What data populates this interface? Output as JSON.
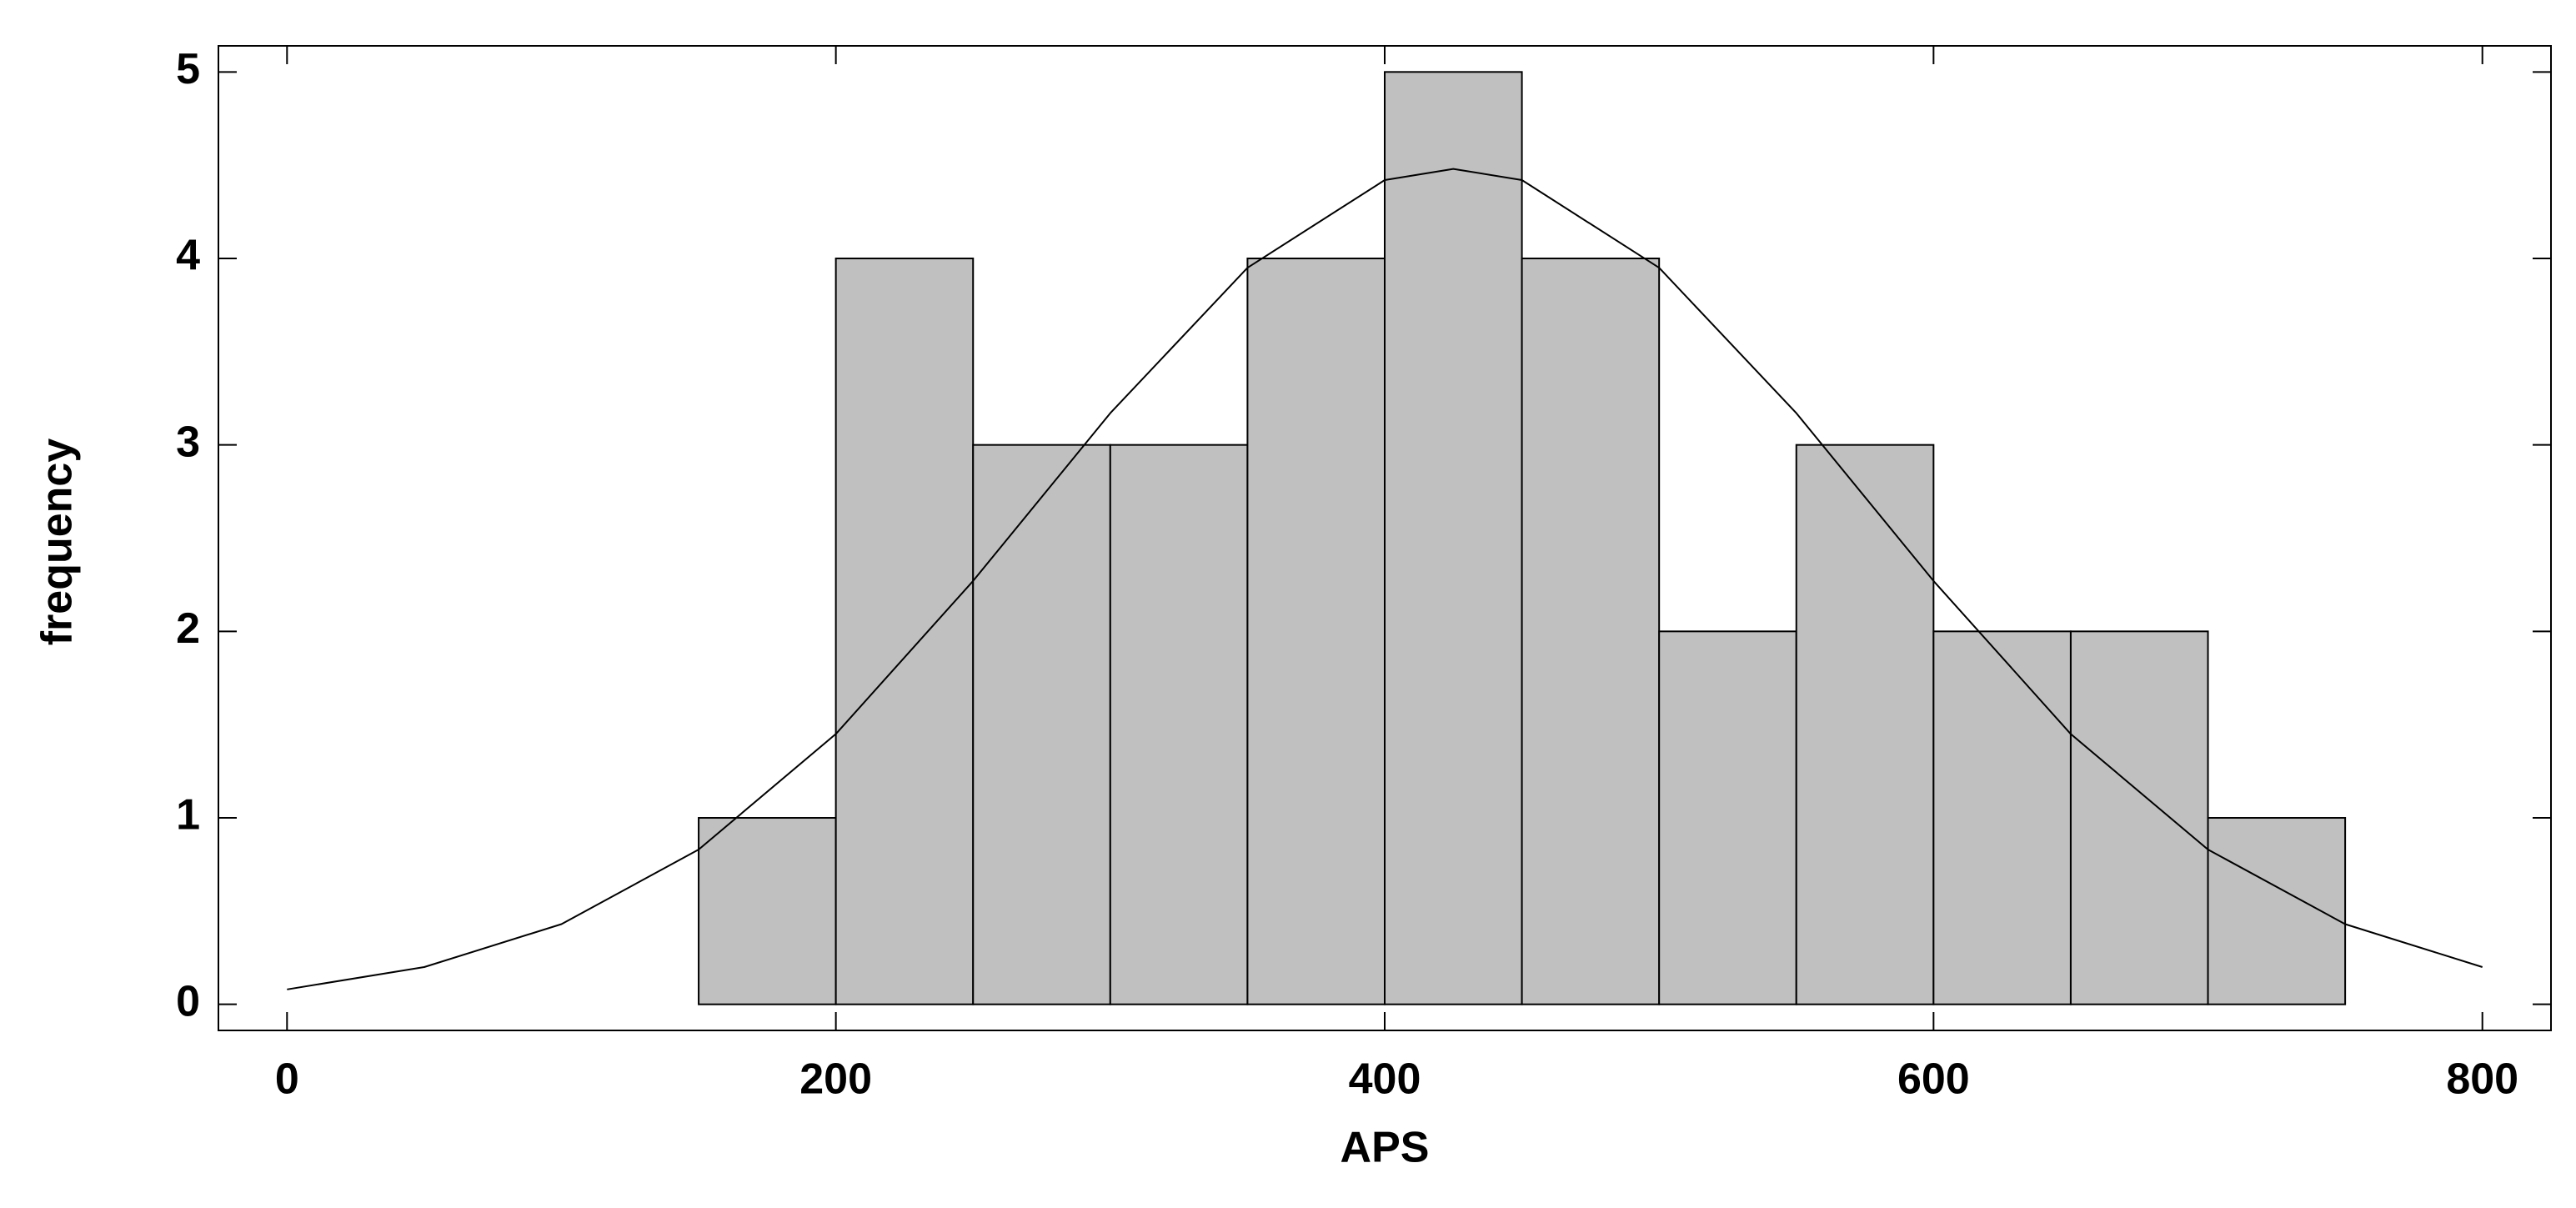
{
  "chart_data": {
    "type": "histogram",
    "xlabel": "APS",
    "ylabel": "frequency",
    "bins": [
      150,
      200,
      250,
      300,
      350,
      400,
      450,
      500,
      550,
      600,
      650,
      700,
      750
    ],
    "values": [
      1,
      4,
      3,
      3,
      4,
      5,
      4,
      2,
      3,
      2,
      2,
      1
    ],
    "color": "#c0c0c0",
    "curve": {
      "x": [
        0,
        50,
        100,
        150,
        200,
        250,
        300,
        350,
        400,
        425,
        450,
        500,
        550,
        600,
        650,
        700,
        750,
        800
      ],
      "values": [
        0.08,
        0.2,
        0.43,
        0.83,
        1.45,
        2.27,
        3.17,
        3.95,
        4.42,
        4.48,
        4.42,
        3.95,
        3.17,
        2.27,
        1.45,
        0.83,
        0.43,
        0.2
      ],
      "color": "#000000"
    },
    "xlim": [
      -25,
      825
    ],
    "ylim": [
      -0.14,
      5.14
    ],
    "xticks": [
      0,
      200,
      400,
      600,
      800
    ],
    "yticks": [
      0,
      1,
      2,
      3,
      4,
      5
    ]
  }
}
